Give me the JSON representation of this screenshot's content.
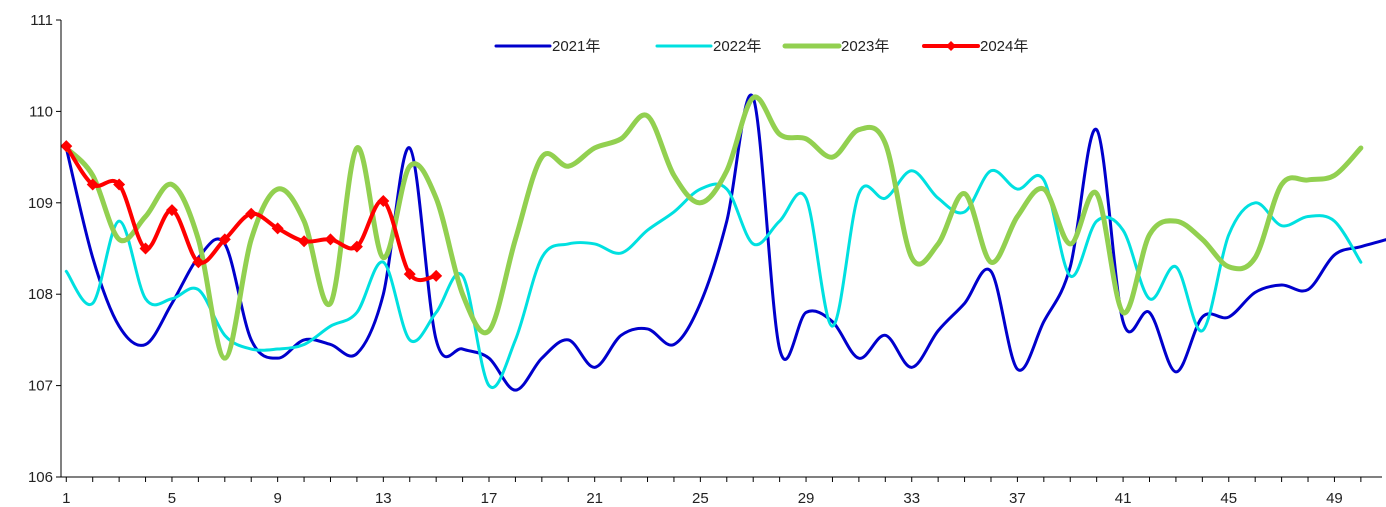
{
  "chart_data": {
    "type": "line",
    "title": "",
    "xlabel": "",
    "ylabel": "",
    "x": [
      1,
      2,
      3,
      4,
      5,
      6,
      7,
      8,
      9,
      10,
      11,
      12,
      13,
      14,
      15,
      16,
      17,
      18,
      19,
      20,
      21,
      22,
      23,
      24,
      25,
      26,
      27,
      28,
      29,
      30,
      31,
      32,
      33,
      34,
      35,
      36,
      37,
      38,
      39,
      40,
      41,
      42,
      43,
      44,
      45,
      46,
      47,
      48,
      49,
      50,
      51
    ],
    "xlim": [
      0.8,
      50.8
    ],
    "x_ticks": [
      1,
      5,
      9,
      13,
      17,
      21,
      25,
      29,
      33,
      37,
      41,
      45,
      49
    ],
    "ylim": [
      106,
      111
    ],
    "y_ticks": [
      106,
      107,
      108,
      109,
      110,
      111
    ],
    "grid": false,
    "legend_position": "top-center",
    "series": [
      {
        "name": "2021年",
        "color": "#0000cc",
        "values": [
          109.6,
          108.4,
          107.65,
          107.45,
          107.9,
          108.4,
          108.55,
          107.5,
          107.3,
          107.5,
          107.45,
          107.35,
          108.0,
          109.6,
          107.5,
          107.4,
          107.3,
          106.95,
          107.3,
          107.5,
          107.2,
          107.55,
          107.62,
          107.45,
          107.9,
          108.8,
          110.15,
          107.4,
          107.8,
          107.7,
          107.3,
          107.55,
          107.2,
          107.6,
          107.9,
          108.25,
          107.18,
          107.7,
          108.3,
          109.8,
          107.7,
          107.8,
          107.15,
          107.75,
          107.75,
          108.02,
          108.1,
          108.05,
          108.43,
          108.52,
          108.6
        ],
        "marker": false
      },
      {
        "name": "2022年",
        "color": "#00e0e0",
        "values": [
          108.25,
          107.9,
          108.8,
          107.95,
          107.95,
          108.05,
          107.55,
          107.4,
          107.4,
          107.45,
          107.65,
          107.8,
          108.35,
          107.5,
          107.8,
          108.2,
          107.0,
          107.5,
          108.4,
          108.55,
          108.55,
          108.45,
          108.7,
          108.9,
          109.15,
          109.15,
          108.55,
          108.8,
          109.05,
          107.65,
          109.1,
          109.05,
          109.35,
          109.05,
          108.9,
          109.35,
          109.15,
          109.25,
          108.2,
          108.8,
          108.7,
          107.95,
          108.3,
          107.6,
          108.65,
          109.0,
          108.75,
          108.85,
          108.8,
          108.35,
          null
        ],
        "marker": false
      },
      {
        "name": "2023年",
        "color": "#92d050",
        "values": [
          109.6,
          109.3,
          108.6,
          108.85,
          109.2,
          108.6,
          107.3,
          108.6,
          109.15,
          108.8,
          107.9,
          109.6,
          108.4,
          109.4,
          109.05,
          108.0,
          107.6,
          108.6,
          109.5,
          109.4,
          109.6,
          109.7,
          109.95,
          109.3,
          109.0,
          109.35,
          110.15,
          109.75,
          109.7,
          109.5,
          109.8,
          109.65,
          108.4,
          108.55,
          109.1,
          108.35,
          108.85,
          109.15,
          108.55,
          109.1,
          107.8,
          108.65,
          108.8,
          108.6,
          108.3,
          108.4,
          109.2,
          109.25,
          109.3,
          109.6,
          null
        ],
        "marker": false
      },
      {
        "name": "2024年",
        "color": "#ff0000",
        "values": [
          109.62,
          109.2,
          109.2,
          108.5,
          108.92,
          108.35,
          108.6,
          108.88,
          108.72,
          108.58,
          108.6,
          108.52,
          109.02,
          108.22,
          108.2,
          null,
          null,
          null,
          null,
          null,
          null,
          null,
          null,
          null,
          null,
          null,
          null,
          null,
          null,
          null,
          null,
          null,
          null,
          null,
          null,
          null,
          null,
          null,
          null,
          null,
          null,
          null,
          null,
          null,
          null,
          null,
          null,
          null,
          null,
          null,
          null
        ],
        "marker": true
      }
    ]
  }
}
